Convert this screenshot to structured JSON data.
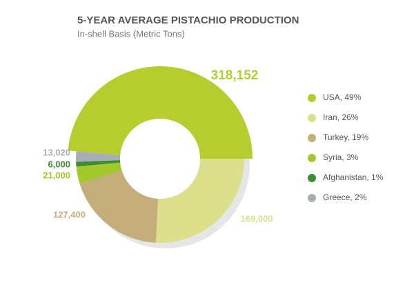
{
  "chart_data": {
    "type": "donut",
    "title": "5-YEAR AVERAGE PISTACHIO PRODUCTION",
    "subtitle": "In-shell Basis (Metric Tons)",
    "categories": [
      "USA, 49%",
      "Iran, 26%",
      "Turkey, 19%",
      "Syria, 3%",
      "Afghanistan, 1%",
      "Greece, 2%"
    ],
    "values": [
      318152,
      169000,
      127400,
      21000,
      6000,
      13020
    ],
    "value_labels": [
      "318,152",
      "169,000",
      "127,400",
      "21,000",
      "6,000",
      "13,020"
    ],
    "colors": [
      "#b6cc2f",
      "#dcdf8c",
      "#c2ad7b",
      "#a3c82c",
      "#3e8b30",
      "#a9aeb6"
    ]
  }
}
